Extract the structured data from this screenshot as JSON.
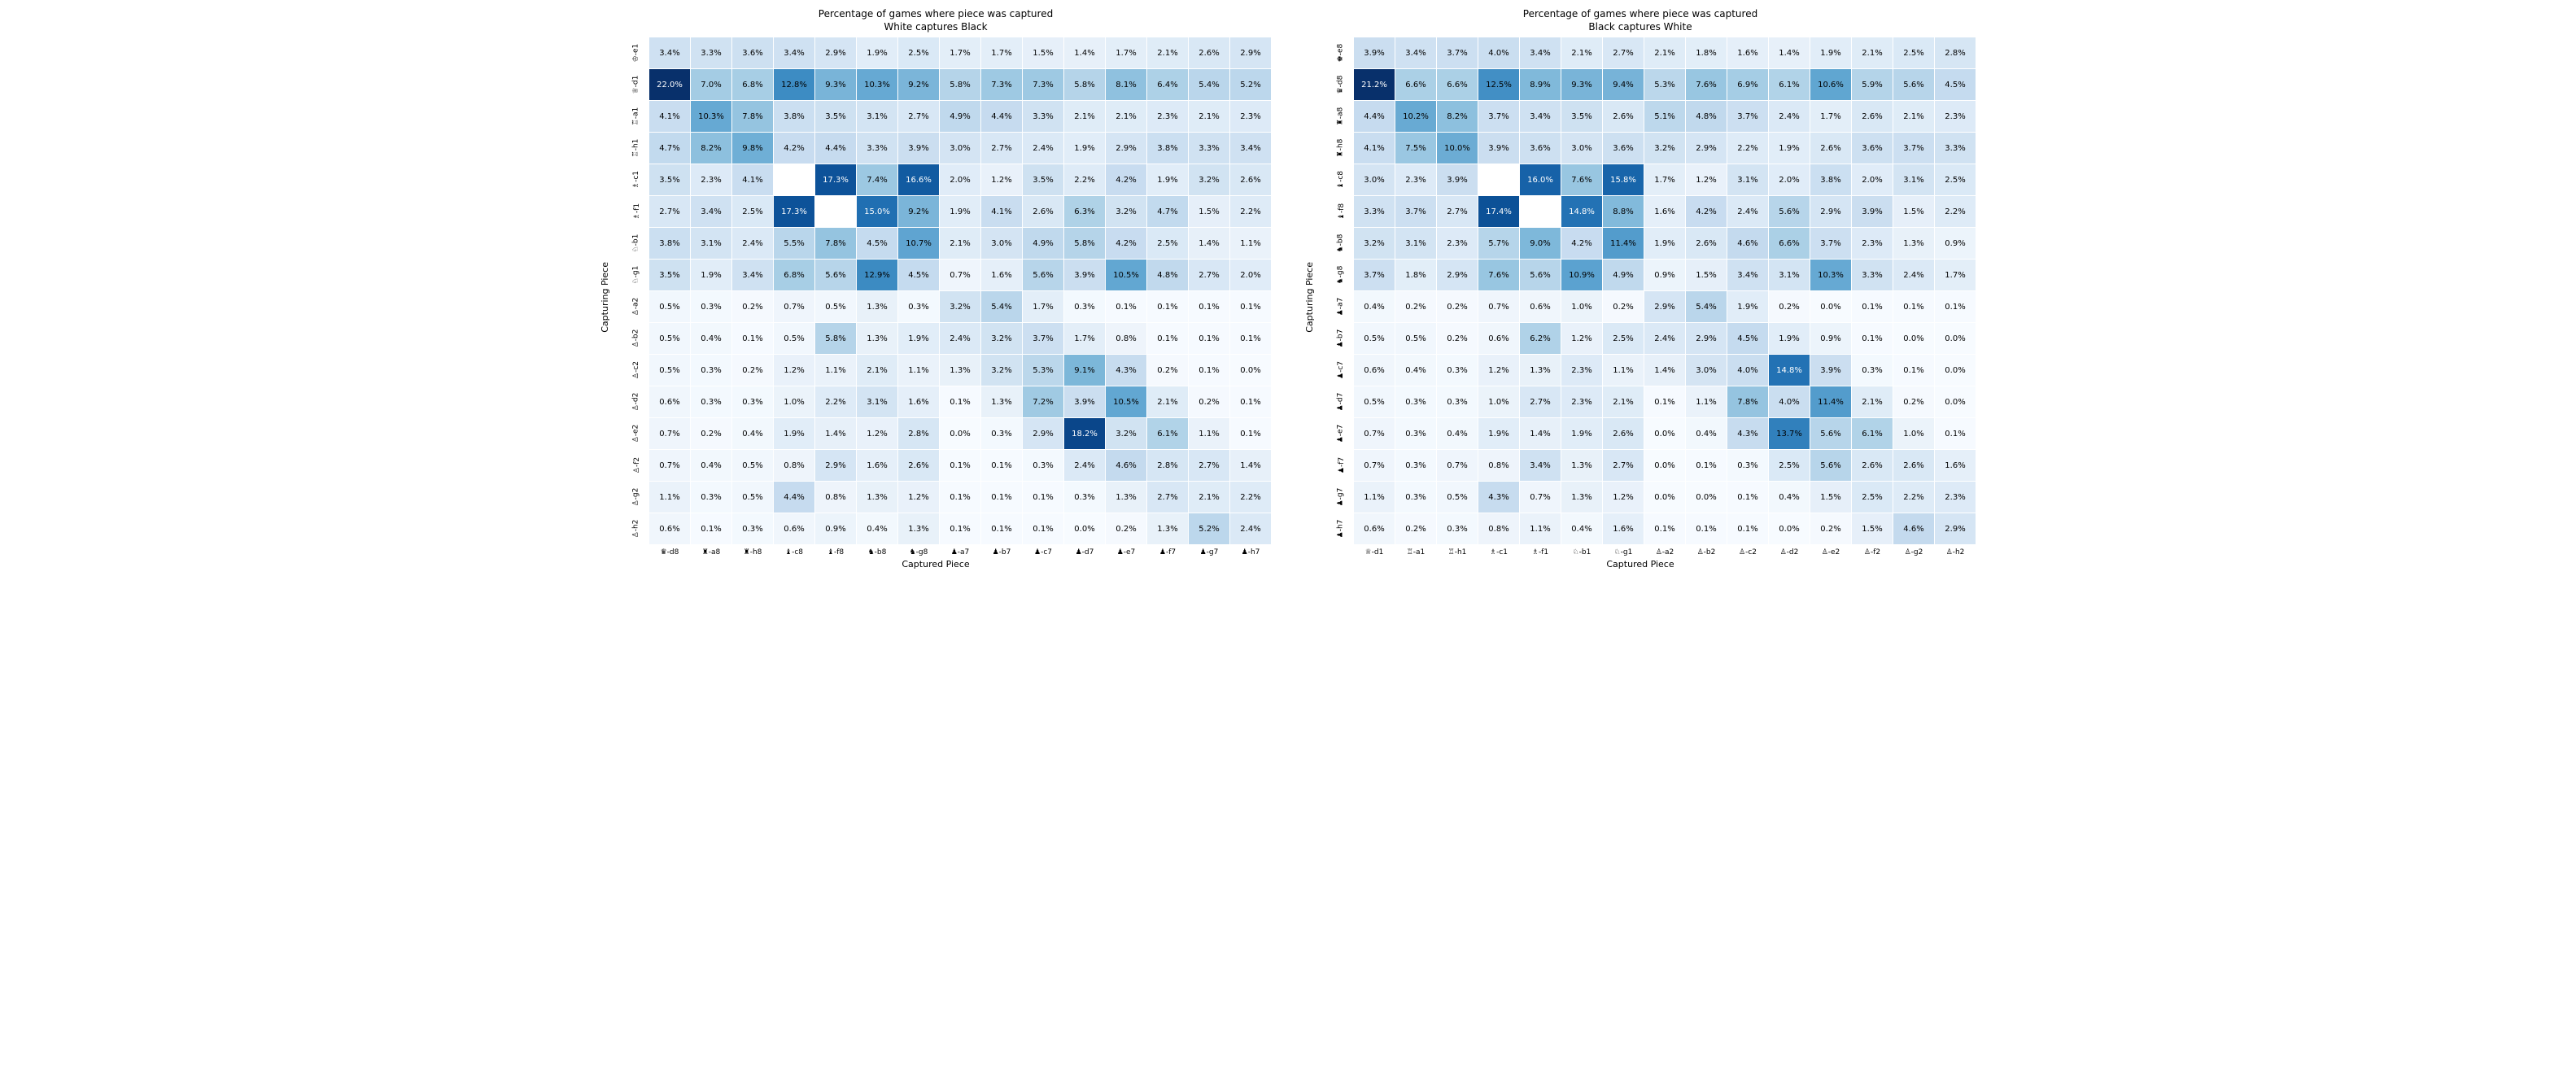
{
  "layout": {
    "panels_side_by_side": true,
    "background_color": "#ffffff",
    "grid_line_color": "#ffffff",
    "text_color_dark": "#000000",
    "text_color_light": "#ffffff",
    "light_text_threshold_pct": 14.0,
    "cell_fontsize": 10,
    "title_fontsize": 12,
    "label_fontsize": 11,
    "tick_fontsize": 9
  },
  "colorscale": {
    "type": "Blues",
    "min_pct": 0.0,
    "max_pct": 22.0,
    "stops": [
      {
        "t": 0.0,
        "hex": "#f7fbff"
      },
      {
        "t": 0.05,
        "hex": "#eaf2fa"
      },
      {
        "t": 0.1,
        "hex": "#deebf7"
      },
      {
        "t": 0.15,
        "hex": "#d0e2f2"
      },
      {
        "t": 0.2,
        "hex": "#c6dbef"
      },
      {
        "t": 0.3,
        "hex": "#abd0e6"
      },
      {
        "t": 0.4,
        "hex": "#82badb"
      },
      {
        "t": 0.5,
        "hex": "#59a1cf"
      },
      {
        "t": 0.6,
        "hex": "#3787c0"
      },
      {
        "t": 0.7,
        "hex": "#1b6aaf"
      },
      {
        "t": 0.8,
        "hex": "#0b4e95"
      },
      {
        "t": 0.9,
        "hex": "#08306b"
      },
      {
        "t": 1.0,
        "hex": "#08306b"
      }
    ]
  },
  "panels": [
    {
      "id": "white_captures_black",
      "title_line1": "Percentage of games where piece was captured",
      "title_line2": "White captures Black",
      "xlabel": "Captured Piece",
      "ylabel": "Capturing Piece",
      "columns": [
        "♛-d8",
        "♜-a8",
        "♜-h8",
        "♝-c8",
        "♝-f8",
        "♞-b8",
        "♞-g8",
        "♟-a7",
        "♟-b7",
        "♟-c7",
        "♟-d7",
        "♟-e7",
        "♟-f7",
        "♟-g7",
        "♟-h7"
      ],
      "rows": [
        "♔-e1",
        "♕-d1",
        "♖-a1",
        "♖-h1",
        "♗-c1",
        "♗-f1",
        "♘-b1",
        "♘-g1",
        "♙-a2",
        "♙-b2",
        "♙-c2",
        "♙-d2",
        "♙-e2",
        "♙-f2",
        "♙-g2",
        "♙-h2"
      ],
      "values": [
        [
          3.4,
          3.3,
          3.6,
          3.4,
          2.9,
          1.9,
          2.5,
          1.7,
          1.7,
          1.5,
          1.4,
          1.7,
          2.1,
          2.6,
          2.9
        ],
        [
          22.0,
          7.0,
          6.8,
          12.8,
          9.3,
          10.3,
          9.2,
          5.8,
          7.3,
          7.3,
          5.8,
          8.1,
          6.4,
          5.4,
          5.2
        ],
        [
          4.1,
          10.3,
          7.8,
          3.8,
          3.5,
          3.1,
          2.7,
          4.9,
          4.4,
          3.3,
          2.1,
          2.1,
          2.3,
          2.1,
          2.3
        ],
        [
          4.7,
          8.2,
          9.8,
          4.2,
          4.4,
          3.3,
          3.9,
          3.0,
          2.7,
          2.4,
          1.9,
          2.9,
          3.8,
          3.3,
          3.4
        ],
        [
          3.5,
          2.3,
          4.1,
          null,
          17.3,
          7.4,
          16.6,
          2.0,
          1.2,
          3.5,
          2.2,
          4.2,
          1.9,
          3.2,
          2.6
        ],
        [
          2.7,
          3.4,
          2.5,
          17.3,
          null,
          15.0,
          9.2,
          1.9,
          4.1,
          2.6,
          6.3,
          3.2,
          4.7,
          1.5,
          2.2
        ],
        [
          3.8,
          3.1,
          2.4,
          5.5,
          7.8,
          4.5,
          10.7,
          2.1,
          3.0,
          4.9,
          5.8,
          4.2,
          2.5,
          1.4,
          1.1
        ],
        [
          3.5,
          1.9,
          3.4,
          6.8,
          5.6,
          12.9,
          4.5,
          0.7,
          1.6,
          5.6,
          3.9,
          10.5,
          4.8,
          2.7,
          2.0
        ],
        [
          0.5,
          0.3,
          0.2,
          0.7,
          0.5,
          1.3,
          0.3,
          3.2,
          5.4,
          1.7,
          0.3,
          0.1,
          0.1,
          0.1,
          0.1
        ],
        [
          0.5,
          0.4,
          0.1,
          0.5,
          5.8,
          1.3,
          1.9,
          2.4,
          3.2,
          3.7,
          1.7,
          0.8,
          0.1,
          0.1,
          0.1
        ],
        [
          0.5,
          0.3,
          0.2,
          1.2,
          1.1,
          2.1,
          1.1,
          1.3,
          3.2,
          5.3,
          9.1,
          4.3,
          0.2,
          0.1,
          0.0
        ],
        [
          0.6,
          0.3,
          0.3,
          1.0,
          2.2,
          3.1,
          1.6,
          0.1,
          1.3,
          7.2,
          3.9,
          10.5,
          2.1,
          0.2,
          0.1
        ],
        [
          0.7,
          0.2,
          0.4,
          1.9,
          1.4,
          1.2,
          2.8,
          0.0,
          0.3,
          2.9,
          18.2,
          3.2,
          6.1,
          1.1,
          0.1
        ],
        [
          0.7,
          0.4,
          0.5,
          0.8,
          2.9,
          1.6,
          2.6,
          0.1,
          0.1,
          0.3,
          2.4,
          4.6,
          2.8,
          2.7,
          1.4
        ],
        [
          1.1,
          0.3,
          0.5,
          4.4,
          0.8,
          1.3,
          1.2,
          0.1,
          0.1,
          0.1,
          0.3,
          1.3,
          2.7,
          2.1,
          2.2
        ],
        [
          0.6,
          0.1,
          0.3,
          0.6,
          0.9,
          0.4,
          1.3,
          0.1,
          0.1,
          0.1,
          0.0,
          0.2,
          1.3,
          5.2,
          2.4
        ]
      ]
    },
    {
      "id": "black_captures_white",
      "title_line1": "Percentage of games where piece was captured",
      "title_line2": "Black captures White",
      "xlabel": "Captured Piece",
      "ylabel": "Capturing Piece",
      "columns": [
        "♕-d1",
        "♖-a1",
        "♖-h1",
        "♗-c1",
        "♗-f1",
        "♘-b1",
        "♘-g1",
        "♙-a2",
        "♙-b2",
        "♙-c2",
        "♙-d2",
        "♙-e2",
        "♙-f2",
        "♙-g2",
        "♙-h2"
      ],
      "rows": [
        "♚-e8",
        "♛-d8",
        "♜-a8",
        "♜-h8",
        "♝-c8",
        "♝-f8",
        "♞-b8",
        "♞-g8",
        "♟-a7",
        "♟-b7",
        "♟-c7",
        "♟-d7",
        "♟-e7",
        "♟-f7",
        "♟-g7",
        "♟-h7"
      ],
      "values": [
        [
          3.9,
          3.4,
          3.7,
          4.0,
          3.4,
          2.1,
          2.7,
          2.1,
          1.8,
          1.6,
          1.4,
          1.9,
          2.1,
          2.5,
          2.8
        ],
        [
          21.2,
          6.6,
          6.6,
          12.5,
          8.9,
          9.3,
          9.4,
          5.3,
          7.6,
          6.9,
          6.1,
          10.6,
          5.9,
          5.6,
          4.5
        ],
        [
          4.4,
          10.2,
          8.2,
          3.7,
          3.4,
          3.5,
          2.6,
          5.1,
          4.8,
          3.7,
          2.4,
          1.7,
          2.6,
          2.1,
          2.3
        ],
        [
          4.1,
          7.5,
          10.0,
          3.9,
          3.6,
          3.0,
          3.6,
          3.2,
          2.9,
          2.2,
          1.9,
          2.6,
          3.6,
          3.7,
          3.3
        ],
        [
          3.0,
          2.3,
          3.9,
          null,
          16.0,
          7.6,
          15.8,
          1.7,
          1.2,
          3.1,
          2.0,
          3.8,
          2.0,
          3.1,
          2.5
        ],
        [
          3.3,
          3.7,
          2.7,
          17.4,
          null,
          14.8,
          8.8,
          1.6,
          4.2,
          2.4,
          5.6,
          2.9,
          3.9,
          1.5,
          2.2
        ],
        [
          3.2,
          3.1,
          2.3,
          5.7,
          9.0,
          4.2,
          11.4,
          1.9,
          2.6,
          4.6,
          6.6,
          3.7,
          2.3,
          1.3,
          0.9
        ],
        [
          3.7,
          1.8,
          2.9,
          7.6,
          5.6,
          10.9,
          4.9,
          0.9,
          1.5,
          3.4,
          3.1,
          10.3,
          3.3,
          2.4,
          1.7
        ],
        [
          0.4,
          0.2,
          0.2,
          0.7,
          0.6,
          1.0,
          0.2,
          2.9,
          5.4,
          1.9,
          0.2,
          0.0,
          0.1,
          0.1,
          0.1
        ],
        [
          0.5,
          0.5,
          0.2,
          0.6,
          6.2,
          1.2,
          2.5,
          2.4,
          2.9,
          4.5,
          1.9,
          0.9,
          0.1,
          0.0,
          0.0
        ],
        [
          0.6,
          0.4,
          0.3,
          1.2,
          1.3,
          2.3,
          1.1,
          1.4,
          3.0,
          4.0,
          14.8,
          3.9,
          0.3,
          0.1,
          0.0
        ],
        [
          0.5,
          0.3,
          0.3,
          1.0,
          2.7,
          2.3,
          2.1,
          0.1,
          1.1,
          7.8,
          4.0,
          11.4,
          2.1,
          0.2,
          0.0
        ],
        [
          0.7,
          0.3,
          0.4,
          1.9,
          1.4,
          1.9,
          2.6,
          0.0,
          0.4,
          4.3,
          13.7,
          5.6,
          6.1,
          1.0,
          0.1
        ],
        [
          0.7,
          0.3,
          0.7,
          0.8,
          3.4,
          1.3,
          2.7,
          0.0,
          0.1,
          0.3,
          2.5,
          5.6,
          2.6,
          2.6,
          1.6
        ],
        [
          1.1,
          0.3,
          0.5,
          4.3,
          0.7,
          1.3,
          1.2,
          0.0,
          0.0,
          0.1,
          0.4,
          1.5,
          2.5,
          2.2,
          2.3
        ],
        [
          0.6,
          0.2,
          0.3,
          0.8,
          1.1,
          0.4,
          1.6,
          0.1,
          0.1,
          0.1,
          0.0,
          0.2,
          1.5,
          4.6,
          2.9
        ]
      ]
    }
  ]
}
